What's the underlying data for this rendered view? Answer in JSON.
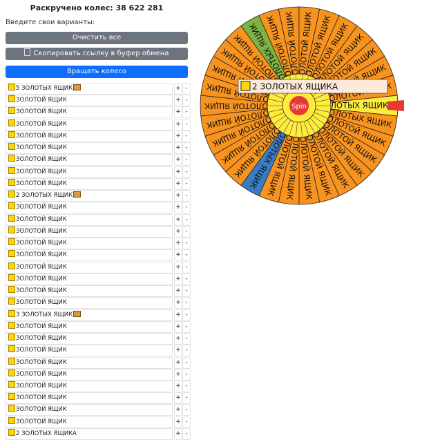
{
  "header": {
    "title": "Раскручено колес: 38 622 281",
    "prompt": "Введите свои варианты:"
  },
  "buttons": {
    "clear": "Очистить все",
    "copy": "Скопировать ссылку в буфер обмена",
    "spin": "Вращать колесо"
  },
  "row_buttons": {
    "plus": "+",
    "minus": "-"
  },
  "items": [
    {
      "text": "5 ЗОЛОТЫХ ЯЩИК",
      "chest": true,
      "color": "#f7931e"
    },
    {
      "text": "ЗОЛОТОЙ ЯЩИК",
      "chest": false,
      "color": "#f7931e"
    },
    {
      "text": "ЗОЛОТОЙ ЯЩИК",
      "chest": false,
      "color": "#f7931e"
    },
    {
      "text": "ЗОЛОТОЙ ЯЩИК",
      "chest": false,
      "color": "#f7931e"
    },
    {
      "text": "ЗОЛОТОЙ ЯЩИК",
      "chest": false,
      "color": "#f7931e"
    },
    {
      "text": "ЗОЛОТОЙ ЯЩИК",
      "chest": false,
      "color": "#f7931e"
    },
    {
      "text": "ЗОЛОТОЙ ЯЩИК",
      "chest": false,
      "color": "#f7931e"
    },
    {
      "text": "ЗОЛОТОЙ ЯЩИК",
      "chest": false,
      "color": "#f7931e"
    },
    {
      "text": "ЗОЛОТОЙ ЯЩИК",
      "chest": false,
      "color": "#f7931e"
    },
    {
      "text": "2 ЗОЛОТЫХ ЯЩИК",
      "chest": true,
      "color": "#3a7cc4"
    },
    {
      "text": "ЗОЛОТОЙ ЯЩИК",
      "chest": false,
      "color": "#f7931e"
    },
    {
      "text": "ЗОЛОТОЙ ЯЩИК",
      "chest": false,
      "color": "#f7931e"
    },
    {
      "text": "ЗОЛОТОЙ ЯЩИК",
      "chest": false,
      "color": "#f7931e"
    },
    {
      "text": "ЗОЛОТОЙ ЯЩИК",
      "chest": false,
      "color": "#f7931e"
    },
    {
      "text": "ЗОЛОТОЙ ЯЩИК",
      "chest": false,
      "color": "#f7931e"
    },
    {
      "text": "ЗОЛОТОЙ ЯЩИК",
      "chest": false,
      "color": "#f7931e"
    },
    {
      "text": "ЗОЛОТОЙ ЯЩИК",
      "chest": false,
      "color": "#f7931e"
    },
    {
      "text": "ЗОЛОТОЙ ЯЩИК",
      "chest": false,
      "color": "#f7931e"
    },
    {
      "text": "ЗОЛОТОЙ ЯЩИК",
      "chest": false,
      "color": "#f7931e"
    },
    {
      "text": "3 ЗОЛОТЫХ ЯЩИК",
      "chest": true,
      "color": "#7cb342"
    },
    {
      "text": "ЗОЛОТОЙ ЯЩИК",
      "chest": false,
      "color": "#f7931e"
    },
    {
      "text": "ЗОЛОТОЙ ЯЩИК",
      "chest": false,
      "color": "#f7931e"
    },
    {
      "text": "ЗОЛОТОЙ ЯЩИК",
      "chest": false,
      "color": "#f7931e"
    },
    {
      "text": "ЗОЛОТОЙ ЯЩИК",
      "chest": false,
      "color": "#f7931e"
    },
    {
      "text": "ЗОЛОТОЙ ЯЩИК",
      "chest": false,
      "color": "#f7931e"
    },
    {
      "text": "ЗОЛОТОЙ ЯЩИК",
      "chest": false,
      "color": "#f7931e"
    },
    {
      "text": "ЗОЛОТОЙ ЯЩИК",
      "chest": false,
      "color": "#f7931e"
    },
    {
      "text": "ЗОЛОТОЙ ЯЩИК",
      "chest": false,
      "color": "#f7931e"
    },
    {
      "text": "ЗОЛОТОЙ ЯЩИК",
      "chest": false,
      "color": "#f7931e"
    },
    {
      "text": "2 ЗОЛОТЫХ ЯЩИКА",
      "chest": false,
      "color": "#ffeb3b"
    }
  ],
  "wheel": {
    "center_button": "Spin",
    "popup": "2 ЗОЛОТЫХ ЯЩИКА"
  }
}
